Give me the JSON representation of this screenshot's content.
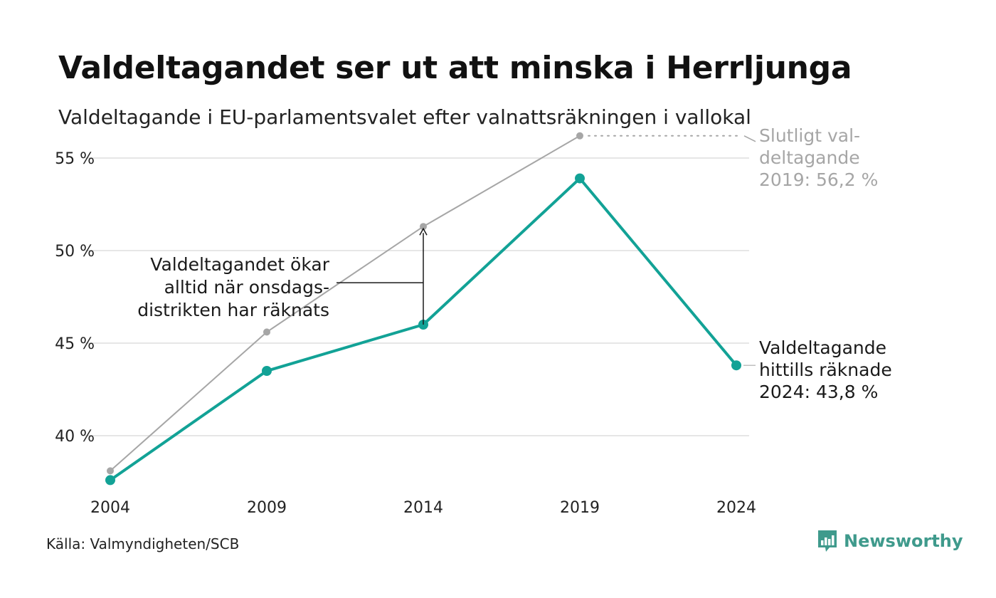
{
  "title": "Valdeltagandet ser ut att minska i Herrljunga",
  "subtitle": "Valdeltagande i EU-parlamentsvalet efter valnattsräkningen i vallokal",
  "source": "Källa: Valmyndigheten/SCB",
  "brand": {
    "name": "Newsworthy",
    "icon": "newsworthy-logo-icon",
    "color": "#3f9a8c"
  },
  "colors": {
    "counted": "#12a296",
    "final": "#a6a6a6",
    "grid": "#e6e6e6",
    "annotation": "#1a1a1a"
  },
  "annotations": {
    "middle": [
      "Valdeltagandet ökar",
      "alltid när onsdags-",
      "distrikten har räknats"
    ],
    "final_2019": [
      "Slutligt val-",
      "deltagande",
      "2019: 56,2 %"
    ],
    "counted_2024": [
      "Valdeltagande",
      "hittills räknade",
      "2024: 43,8 %"
    ]
  },
  "chart_data": {
    "type": "line",
    "x": [
      2004,
      2009,
      2014,
      2019,
      2024
    ],
    "x_tick_labels": [
      "2004",
      "2009",
      "2014",
      "2019",
      "2024"
    ],
    "y_ticks": [
      40,
      45,
      50,
      55
    ],
    "y_tick_labels": [
      "40 %",
      "45 %",
      "50 %",
      "55 %"
    ],
    "ylim": [
      37,
      57
    ],
    "grid": "horizontal",
    "series": [
      {
        "key": "final",
        "values": [
          38.1,
          45.6,
          51.3,
          56.2,
          null
        ]
      },
      {
        "key": "counted",
        "values": [
          37.6,
          43.5,
          46.0,
          53.9,
          43.8
        ]
      }
    ]
  }
}
